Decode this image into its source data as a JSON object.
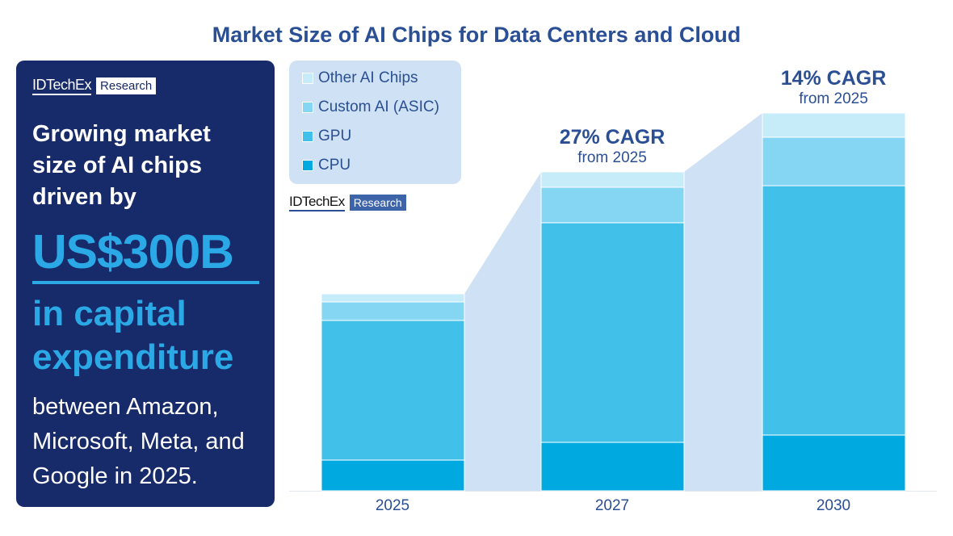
{
  "chart_data": {
    "type": "bar",
    "stacked": true,
    "title": "Market Size of AI Chips for Data Centers and Cloud",
    "categories": [
      "2025",
      "2027",
      "2030"
    ],
    "series": [
      {
        "name": "CPU",
        "color": "#00a9e0",
        "values": [
          15.6,
          24.6,
          28.3
        ]
      },
      {
        "name": "GPU",
        "color": "#41c0ea",
        "values": [
          70.9,
          111.5,
          126.6
        ]
      },
      {
        "name": "Custom AI (ASIC)",
        "color": "#85d6f2",
        "values": [
          9.4,
          18.0,
          24.6
        ]
      },
      {
        "name": "Other AI Chips",
        "color": "#c6ebf9",
        "values": [
          4.1,
          7.8,
          12.3
        ]
      }
    ],
    "legend": "top-left",
    "grid": false,
    "y_axis_shown": false,
    "annotations": [
      {
        "category": "2027",
        "headline": "27% CAGR",
        "sub": "from 2025"
      },
      {
        "category": "2030",
        "headline": "14% CAGR",
        "sub": "from 2025"
      }
    ],
    "connector_color": "#cfe1f4"
  },
  "panel": {
    "logo_name": "IDTechEx",
    "logo_tag": "Research",
    "headline": "Growing market size of AI chips driven by",
    "amount": "US$300B",
    "caption": "in capital expenditure",
    "footer": "between Amazon, Microsoft, Meta, and Google in 2025."
  },
  "chart_logo": {
    "name": "IDTechEx",
    "tag": "Research"
  }
}
